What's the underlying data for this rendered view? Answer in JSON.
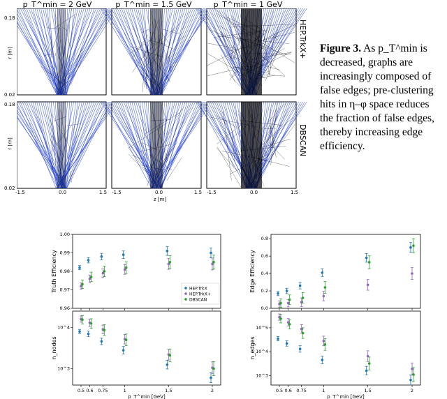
{
  "figure": {
    "col_titles": [
      "p_T^min = 2 GeV",
      "p_T^min = 1.5 GeV",
      "p_T^min = 1 GeV"
    ],
    "row_labels": [
      "HEP.TrkX+",
      "DBSCAN"
    ],
    "y_ticks": [
      "0.18",
      "0.02"
    ],
    "y_axis": "r [m]",
    "x_ticks": [
      "-1.5",
      "0.0",
      "1.5"
    ],
    "x_axis": "z [m]"
  },
  "caption": {
    "label": "Figure 3.",
    "text": "As p_T^min is decreased, graphs are increasingly composed of false edges; pre-clustering hits in η–φ space reduces the fraction of false edges, thereby increasing edge efficiency."
  },
  "colors": {
    "blue": "#1f3fd0",
    "black": "#000000",
    "s1": "#1f77b4",
    "s2": "#9467bd",
    "s3": "#2ca02c"
  },
  "legend": [
    "HEP.TrkX",
    "HEP.TrkX+",
    "DBSCAN"
  ],
  "chart_data": [
    {
      "type": "scatter",
      "ylabel": "Truth Efficiency",
      "x": [
        0.5,
        0.6,
        0.75,
        1,
        1.5,
        2
      ],
      "ylim": [
        0.96,
        1.0
      ],
      "yticks": [
        "1.00",
        "0.99",
        "0.98",
        "0.97",
        "0.96"
      ],
      "series": [
        {
          "name": "HEP.TrkX",
          "values": [
            0.982,
            0.986,
            0.988,
            0.989,
            0.991,
            0.99
          ]
        },
        {
          "name": "HEP.TrkX+",
          "values": [
            0.972,
            0.976,
            0.979,
            0.981,
            0.984,
            0.984
          ]
        },
        {
          "name": "DBSCAN",
          "values": [
            0.973,
            0.977,
            0.98,
            0.982,
            0.985,
            0.985
          ]
        }
      ]
    },
    {
      "type": "scatter",
      "ylabel": "Edge Efficiency",
      "x": [
        0.5,
        0.6,
        0.75,
        1,
        1.5,
        2
      ],
      "ylim": [
        0.0,
        0.85
      ],
      "yticks": [
        "0.8",
        "0.6",
        "0.4",
        "0.2",
        "0.0"
      ],
      "series": [
        {
          "name": "HEP.TrkX",
          "values": [
            0.17,
            0.2,
            0.26,
            0.41,
            0.58,
            0.7
          ]
        },
        {
          "name": "HEP.TrkX+",
          "values": [
            0.05,
            0.06,
            0.07,
            0.14,
            0.27,
            0.4
          ]
        },
        {
          "name": "DBSCAN",
          "values": [
            0.06,
            0.1,
            0.12,
            0.24,
            0.53,
            0.72
          ]
        }
      ]
    },
    {
      "type": "scatter",
      "ylabel": "n_nodes",
      "yscale": "log",
      "x": [
        0.5,
        0.6,
        0.75,
        1,
        1.5,
        2
      ],
      "yticks": [
        "10^4",
        "10^3"
      ],
      "series": [
        {
          "name": "HEP.TrkX",
          "values": [
            8000,
            7000,
            4600,
            2800,
            1250,
            600
          ]
        },
        {
          "name": "HEP.TrkX+",
          "values": [
            16000,
            13000,
            9000,
            5200,
            2200,
            1050
          ]
        },
        {
          "name": "DBSCAN",
          "values": [
            15500,
            12500,
            8700,
            5000,
            2100,
            1000
          ]
        }
      ]
    },
    {
      "type": "scatter",
      "ylabel": "n_edges",
      "yscale": "log",
      "x": [
        0.5,
        0.6,
        0.75,
        1,
        1.5,
        2
      ],
      "xlabel": "p_T^min [GeV]",
      "xticks": [
        "0.5",
        "0.6",
        "0.75",
        "1",
        "1.5",
        "2"
      ],
      "yticks": [
        "10^5",
        "10^4",
        "10^3"
      ],
      "series": [
        {
          "name": "HEP.TrkX",
          "values": [
            35000,
            22000,
            13000,
            4500,
            1600,
            650
          ]
        },
        {
          "name": "HEP.TrkX+",
          "values": [
            280000,
            170000,
            90000,
            28000,
            6500,
            1900
          ]
        },
        {
          "name": "DBSCAN",
          "values": [
            240000,
            140000,
            60000,
            20000,
            3200,
            1100
          ]
        }
      ]
    }
  ]
}
